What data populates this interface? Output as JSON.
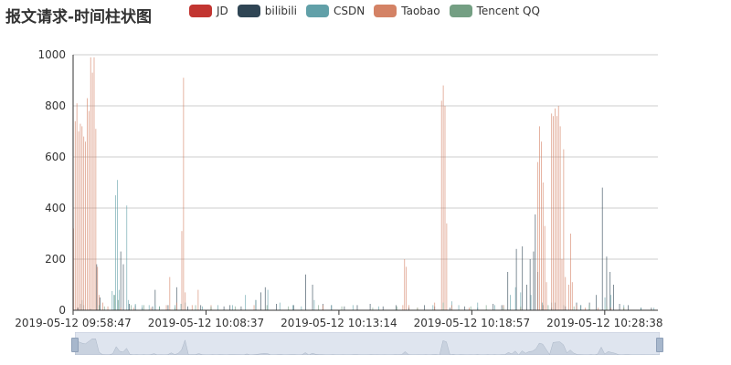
{
  "chart_data": {
    "type": "bar",
    "title": "报文请求-时间柱状图",
    "ylim": [
      0,
      1000
    ],
    "yticks": [
      0,
      200,
      400,
      600,
      800,
      1000
    ],
    "xtick_labels": [
      "2019-05-12 09:58:47",
      "2019-05-12 10:08:37",
      "2019-05-12 10:13:14",
      "2019-05-12 10:18:57",
      "2019-05-12 10:28:38"
    ],
    "grid": true,
    "legend_position": "top",
    "colors": {
      "JD": "#c23531",
      "bilibili": "#2f4554",
      "CSDN": "#61a0a8",
      "Taobao": "#d48265",
      "Tencent QQ": "#749f83"
    },
    "series": [
      {
        "name": "JD",
        "values": []
      },
      {
        "name": "bilibili",
        "values": [
          [
            5,
            10
          ],
          [
            8,
            25
          ],
          [
            20,
            5
          ],
          [
            27,
            180
          ],
          [
            31,
            50
          ],
          [
            55,
            230
          ],
          [
            58,
            180
          ],
          [
            65,
            25
          ],
          [
            72,
            20
          ],
          [
            80,
            10
          ],
          [
            92,
            15
          ],
          [
            95,
            80
          ],
          [
            110,
            20
          ],
          [
            120,
            90
          ],
          [
            133,
            15
          ],
          [
            148,
            20
          ],
          [
            160,
            10
          ],
          [
            175,
            15
          ],
          [
            182,
            20
          ],
          [
            195,
            15
          ],
          [
            212,
            40
          ],
          [
            218,
            70
          ],
          [
            223,
            90
          ],
          [
            236,
            25
          ],
          [
            256,
            20
          ],
          [
            270,
            140
          ],
          [
            278,
            100
          ],
          [
            290,
            25
          ],
          [
            300,
            20
          ],
          [
            315,
            15
          ],
          [
            330,
            20
          ],
          [
            345,
            25
          ],
          [
            360,
            15
          ],
          [
            375,
            20
          ],
          [
            390,
            10
          ],
          [
            408,
            20
          ],
          [
            420,
            15
          ],
          [
            438,
            10
          ],
          [
            455,
            15
          ],
          [
            470,
            10
          ],
          [
            488,
            25
          ],
          [
            498,
            20
          ],
          [
            505,
            150
          ],
          [
            515,
            240
          ],
          [
            522,
            250
          ],
          [
            527,
            100
          ],
          [
            531,
            200
          ],
          [
            535,
            230
          ],
          [
            537,
            375
          ],
          [
            540,
            150
          ],
          [
            546,
            20
          ],
          [
            556,
            10
          ],
          [
            560,
            30
          ],
          [
            572,
            15
          ],
          [
            585,
            30
          ],
          [
            590,
            20
          ],
          [
            600,
            30
          ],
          [
            608,
            60
          ],
          [
            615,
            480
          ],
          [
            620,
            210
          ],
          [
            624,
            150
          ],
          [
            628,
            100
          ],
          [
            635,
            25
          ],
          [
            645,
            20
          ],
          [
            660,
            10
          ],
          [
            672,
            10
          ]
        ]
      },
      {
        "name": "CSDN",
        "values": [
          [
            10,
            40
          ],
          [
            12,
            20
          ],
          [
            45,
            75
          ],
          [
            47,
            60
          ],
          [
            49,
            450
          ],
          [
            51,
            510
          ],
          [
            53,
            80
          ],
          [
            62,
            410
          ],
          [
            64,
            40
          ],
          [
            72,
            25
          ],
          [
            80,
            20
          ],
          [
            88,
            20
          ],
          [
            95,
            20
          ],
          [
            100,
            15
          ],
          [
            118,
            20
          ],
          [
            125,
            25
          ],
          [
            130,
            30
          ],
          [
            150,
            15
          ],
          [
            168,
            20
          ],
          [
            185,
            20
          ],
          [
            200,
            60
          ],
          [
            212,
            40
          ],
          [
            226,
            80
          ],
          [
            240,
            30
          ],
          [
            255,
            20
          ],
          [
            265,
            15
          ],
          [
            280,
            40
          ],
          [
            300,
            20
          ],
          [
            325,
            20
          ],
          [
            355,
            15
          ],
          [
            390,
            10
          ],
          [
            418,
            20
          ],
          [
            440,
            35
          ],
          [
            448,
            20
          ],
          [
            470,
            30
          ],
          [
            490,
            20
          ],
          [
            500,
            20
          ],
          [
            508,
            60
          ],
          [
            514,
            90
          ],
          [
            520,
            70
          ],
          [
            532,
            60
          ],
          [
            545,
            30
          ],
          [
            556,
            30
          ],
          [
            570,
            20
          ],
          [
            590,
            20
          ],
          [
            600,
            20
          ],
          [
            618,
            50
          ],
          [
            625,
            60
          ],
          [
            640,
            20
          ],
          [
            660,
            10
          ],
          [
            675,
            10
          ]
        ]
      },
      {
        "name": "Taobao",
        "values": [
          [
            0,
            320
          ],
          [
            2,
            740
          ],
          [
            4,
            810
          ],
          [
            6,
            700
          ],
          [
            8,
            730
          ],
          [
            10,
            720
          ],
          [
            12,
            680
          ],
          [
            14,
            660
          ],
          [
            16,
            830
          ],
          [
            18,
            780
          ],
          [
            20,
            990
          ],
          [
            22,
            930
          ],
          [
            24,
            990
          ],
          [
            26,
            710
          ],
          [
            28,
            170
          ],
          [
            30,
            60
          ],
          [
            34,
            30
          ],
          [
            40,
            15
          ],
          [
            55,
            10
          ],
          [
            70,
            10
          ],
          [
            90,
            10
          ],
          [
            108,
            20
          ],
          [
            112,
            130
          ],
          [
            120,
            30
          ],
          [
            126,
            310
          ],
          [
            128,
            910
          ],
          [
            130,
            70
          ],
          [
            138,
            20
          ],
          [
            145,
            80
          ],
          [
            160,
            20
          ],
          [
            210,
            20
          ],
          [
            290,
            20
          ],
          [
            383,
            20
          ],
          [
            385,
            200
          ],
          [
            387,
            170
          ],
          [
            390,
            20
          ],
          [
            400,
            10
          ],
          [
            420,
            30
          ],
          [
            428,
            820
          ],
          [
            430,
            880
          ],
          [
            432,
            800
          ],
          [
            434,
            340
          ],
          [
            440,
            20
          ],
          [
            460,
            10
          ],
          [
            500,
            20
          ],
          [
            520,
            10
          ],
          [
            540,
            580
          ],
          [
            542,
            720
          ],
          [
            544,
            660
          ],
          [
            546,
            500
          ],
          [
            548,
            330
          ],
          [
            550,
            110
          ],
          [
            556,
            770
          ],
          [
            558,
            760
          ],
          [
            560,
            790
          ],
          [
            562,
            760
          ],
          [
            564,
            800
          ],
          [
            566,
            720
          ],
          [
            568,
            200
          ],
          [
            570,
            630
          ],
          [
            572,
            130
          ],
          [
            576,
            100
          ],
          [
            578,
            300
          ],
          [
            580,
            110
          ],
          [
            585,
            20
          ],
          [
            595,
            10
          ],
          [
            610,
            10
          ],
          [
            625,
            10
          ],
          [
            640,
            10
          ]
        ]
      },
      {
        "name": "Tencent QQ",
        "values": [
          [
            30,
            20
          ],
          [
            36,
            15
          ],
          [
            48,
            60
          ],
          [
            52,
            40
          ],
          [
            67,
            20
          ],
          [
            82,
            20
          ],
          [
            100,
            15
          ],
          [
            118,
            10
          ],
          [
            142,
            20
          ],
          [
            160,
            15
          ],
          [
            188,
            15
          ],
          [
            225,
            20
          ],
          [
            250,
            15
          ],
          [
            285,
            20
          ],
          [
            312,
            15
          ],
          [
            348,
            10
          ],
          [
            376,
            15
          ],
          [
            400,
            10
          ],
          [
            430,
            30
          ],
          [
            462,
            15
          ],
          [
            480,
            20
          ],
          [
            500,
            10
          ],
          [
            520,
            15
          ],
          [
            552,
            20
          ],
          [
            582,
            15
          ],
          [
            600,
            20
          ],
          [
            620,
            15
          ],
          [
            640,
            10
          ]
        ]
      }
    ]
  },
  "legend": [
    {
      "name": "JD"
    },
    {
      "name": "bilibili"
    },
    {
      "name": "CSDN"
    },
    {
      "name": "Taobao"
    },
    {
      "name": "Tencent QQ"
    }
  ]
}
